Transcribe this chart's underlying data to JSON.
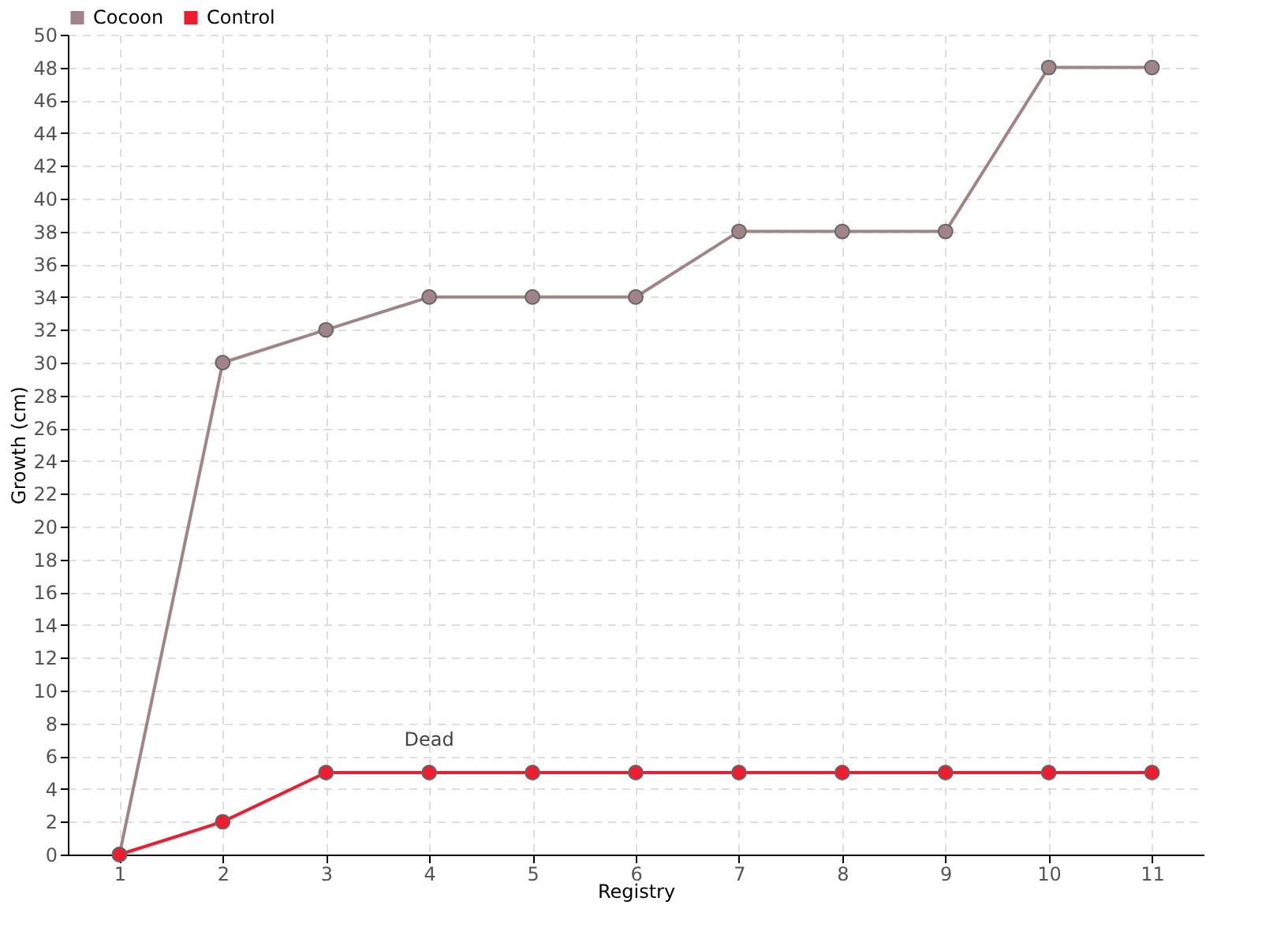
{
  "chart_data": {
    "type": "line",
    "xlabel": "Registry",
    "ylabel": "Growth (cm)",
    "categories": [
      "1",
      "2",
      "3",
      "4",
      "5",
      "6",
      "7",
      "8",
      "9",
      "10",
      "11"
    ],
    "series": [
      {
        "name": "Cocoon",
        "color": "#a08488",
        "values": [
          0,
          30,
          32,
          34,
          34,
          34,
          38,
          38,
          38,
          48,
          48
        ]
      },
      {
        "name": "Control",
        "color": "#ee1c2e",
        "values": [
          0,
          2,
          5,
          5,
          5,
          5,
          5,
          5,
          5,
          5,
          5
        ]
      }
    ],
    "annotations": [
      {
        "text": "Dead",
        "x": "4",
        "y": 5
      }
    ],
    "ylim": [
      0,
      50
    ],
    "yticks": [
      0,
      2,
      4,
      6,
      8,
      10,
      12,
      14,
      16,
      18,
      20,
      22,
      24,
      26,
      28,
      30,
      32,
      34,
      36,
      38,
      40,
      42,
      44,
      46,
      48,
      50
    ],
    "grid": true,
    "legend": "top left",
    "marker": "circle",
    "line_style": "solid"
  }
}
